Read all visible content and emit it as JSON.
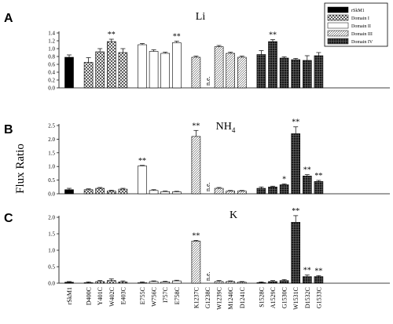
{
  "figure": {
    "ylabel": "Flux Ratio",
    "legend": [
      {
        "label": "rSkM1",
        "fill": "black"
      },
      {
        "label": "Domain I",
        "fill": "cross"
      },
      {
        "label": "Domain II",
        "fill": "white"
      },
      {
        "label": "Domain III",
        "fill": "diag"
      },
      {
        "label": "Domain IV",
        "fill": "dense"
      }
    ]
  },
  "chart_data": [
    {
      "type": "bar",
      "panel": "A",
      "title": "Li",
      "ylim": [
        0,
        1.4
      ],
      "yticks": [
        0.0,
        0.2,
        0.4,
        0.6,
        0.8,
        1.0,
        1.2,
        1.4
      ],
      "categories": [
        "rSkM1",
        "D400C",
        "Y401C",
        "W402C",
        "E403C",
        "E755C",
        "W756C",
        "I757C",
        "E758C",
        "K1237C",
        "G1238C",
        "W1239C",
        "M1240C",
        "D1241C",
        "S1528C",
        "A1529C",
        "G1530C",
        "W1531C",
        "D1532C",
        "G1533C"
      ],
      "domains": [
        "rskm1",
        "domain1",
        "domain1",
        "domain1",
        "domain1",
        "domain2",
        "domain2",
        "domain2",
        "domain2",
        "domain3",
        "domain3",
        "domain3",
        "domain3",
        "domain3",
        "domain4",
        "domain4",
        "domain4",
        "domain4",
        "domain4",
        "domain4"
      ],
      "values": [
        0.78,
        0.65,
        0.92,
        1.18,
        0.9,
        1.1,
        0.93,
        0.88,
        1.15,
        0.78,
        null,
        1.05,
        0.88,
        0.78,
        0.85,
        1.18,
        0.76,
        0.72,
        0.7,
        0.82
      ],
      "errors": [
        0.06,
        0.12,
        0.08,
        0.06,
        0.1,
        0.03,
        0.04,
        0.03,
        0.04,
        0.03,
        null,
        0.03,
        0.03,
        0.03,
        0.1,
        0.05,
        0.03,
        0.03,
        0.12,
        0.08
      ],
      "annotations": [
        "",
        "",
        "",
        "**",
        "",
        "",
        "",
        "",
        "**",
        "",
        "n.e.",
        "",
        "",
        "",
        "",
        "**",
        "",
        "",
        "",
        ""
      ]
    },
    {
      "type": "bar",
      "panel": "B",
      "title": "NH4",
      "ylim": [
        0,
        2.5
      ],
      "yticks": [
        0.0,
        0.5,
        1.0,
        1.5,
        2.0,
        2.5
      ],
      "yticklabels": [
        "0.0",
        "0.5",
        "1.0",
        "1.5",
        "2.0",
        "2.5"
      ],
      "categories": [
        "rSkM1",
        "D400C",
        "Y401C",
        "W402C",
        "E403C",
        "E755C",
        "W756C",
        "I757C",
        "E758C",
        "K1237C",
        "G1238C",
        "W1239C",
        "M1240C",
        "D1241C",
        "S1528C",
        "A1529C",
        "G1530C",
        "W1531C",
        "D1532C",
        "G1533C"
      ],
      "values": [
        0.15,
        0.15,
        0.2,
        0.1,
        0.17,
        1.02,
        0.12,
        0.08,
        0.07,
        2.1,
        null,
        0.2,
        0.1,
        0.1,
        0.2,
        0.25,
        0.33,
        2.2,
        0.65,
        0.45
      ],
      "errors": [
        0.05,
        0.03,
        0.03,
        0.03,
        0.03,
        0.02,
        0.03,
        0.02,
        0.02,
        0.22,
        null,
        0.03,
        0.02,
        0.02,
        0.05,
        0.03,
        0.03,
        0.25,
        0.05,
        0.04
      ],
      "annotations": [
        "",
        "",
        "",
        "",
        "",
        "**",
        "",
        "",
        "",
        "**",
        "n.e.",
        "",
        "",
        "",
        "",
        "",
        "*",
        "**",
        "**",
        "**"
      ]
    },
    {
      "type": "bar",
      "panel": "C",
      "title": "K",
      "ylim": [
        0,
        2.0
      ],
      "yticks": [
        0.0,
        0.5,
        1.0,
        1.5,
        2.0
      ],
      "yticklabels": [
        "0.0",
        "0.5",
        "1.0",
        "1.5",
        "2.0"
      ],
      "categories": [
        "rSkM1",
        "D400C",
        "Y401C",
        "W402C",
        "E403C",
        "E755C",
        "W756C",
        "I757C",
        "E758C",
        "K1237C",
        "G1238C",
        "W1239C",
        "M1240C",
        "D1241C",
        "S1528C",
        "A1529C",
        "G1530C",
        "W1531C",
        "D1532C",
        "G1533C"
      ],
      "values": [
        0.03,
        0.02,
        0.05,
        0.08,
        0.04,
        0.02,
        0.05,
        0.04,
        0.07,
        1.28,
        null,
        0.05,
        0.05,
        0.03,
        0.02,
        0.05,
        0.08,
        1.85,
        0.2,
        0.2
      ],
      "errors": [
        0.02,
        0.02,
        0.03,
        0.05,
        0.03,
        0.02,
        0.02,
        0.02,
        0.02,
        0.02,
        null,
        0.03,
        0.02,
        0.02,
        0.02,
        0.03,
        0.03,
        0.2,
        0.05,
        0.03
      ],
      "annotations": [
        "",
        "",
        "",
        "",
        "",
        "",
        "",
        "",
        "",
        "**",
        "n.e.",
        "",
        "",
        "",
        "",
        "",
        "",
        "**",
        "**",
        "**"
      ]
    }
  ]
}
